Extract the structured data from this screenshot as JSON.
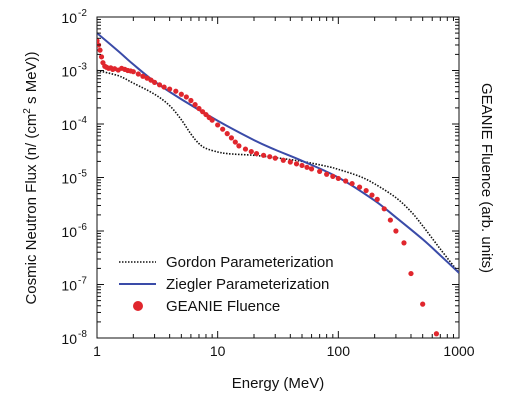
{
  "chart_data": {
    "type": "scatter",
    "title": "",
    "xlabel": "Energy (MeV)",
    "ylabel_left": "Cosmic Neutron Flux (n/ (cm² s MeV))",
    "ylabel_right": "GEANIE Fluence (arb. units)",
    "x_scale": "log",
    "y_scale": "log",
    "xlim": [
      1,
      1000
    ],
    "ylim": [
      1e-08,
      0.01
    ],
    "x_ticks": [
      {
        "value": 1,
        "label": "1"
      },
      {
        "value": 10,
        "label": "10"
      },
      {
        "value": 100,
        "label": "100"
      },
      {
        "value": 1000,
        "label": "1000"
      }
    ],
    "y_ticks": [
      {
        "value": 1e-08,
        "base": "10",
        "exp": "-8"
      },
      {
        "value": 1e-07,
        "base": "10",
        "exp": "-7"
      },
      {
        "value": 1e-06,
        "base": "10",
        "exp": "-6"
      },
      {
        "value": 1e-05,
        "base": "10",
        "exp": "-5"
      },
      {
        "value": 0.0001,
        "base": "10",
        "exp": "-4"
      },
      {
        "value": 0.001,
        "base": "10",
        "exp": "-3"
      },
      {
        "value": 0.01,
        "base": "10",
        "exp": "-2"
      }
    ],
    "grid": false,
    "legend_position": "bottom-left",
    "series": [
      {
        "name": "Gordon Parameterization",
        "kind": "line",
        "style": "dotted",
        "color": "#111111",
        "x": [
          1,
          1.5,
          2,
          3,
          4,
          5,
          6,
          7,
          8,
          10,
          12,
          15,
          20,
          30,
          50,
          80,
          100,
          150,
          200,
          300,
          400,
          500,
          700,
          1000
        ],
        "y": [
          0.001,
          0.0008,
          0.00058,
          0.00036,
          0.00022,
          0.00012,
          6.5e-05,
          4.3e-05,
          3.5e-05,
          3e-05,
          2.8e-05,
          2.7e-05,
          2.6e-05,
          2.35e-05,
          2e-05,
          1.62e-05,
          1.42e-05,
          1.05e-05,
          7.6e-06,
          4.2e-06,
          2.3e-06,
          1.25e-06,
          4.6e-07,
          1.65e-07
        ]
      },
      {
        "name": "Ziegler Parameterization",
        "kind": "line",
        "style": "solid",
        "color": "#3a4ba8",
        "x": [
          1,
          1.5,
          2,
          3,
          5,
          10,
          20,
          30,
          50,
          100,
          200,
          300,
          500,
          700,
          1000
        ],
        "y": [
          0.005,
          0.0023,
          0.0013,
          0.00062,
          0.00029,
          0.000115,
          5e-05,
          3.3e-05,
          2.05e-05,
          1e-05,
          3.7e-06,
          1.8e-06,
          7e-07,
          3.5e-07,
          1.65e-07
        ]
      },
      {
        "name": "GEANIE Fluence",
        "kind": "scatter",
        "color": "#e0262d",
        "x": [
          1.0,
          1.03,
          1.06,
          1.09,
          1.12,
          1.16,
          1.2,
          1.25,
          1.3,
          1.35,
          1.4,
          1.5,
          1.6,
          1.7,
          1.8,
          1.9,
          2.0,
          2.2,
          2.4,
          2.6,
          2.8,
          3.0,
          3.3,
          3.6,
          4.0,
          4.5,
          5.0,
          5.5,
          6.0,
          6.5,
          7.0,
          7.5,
          8.0,
          8.5,
          9.0,
          10,
          11,
          12,
          13,
          14,
          15,
          17,
          19,
          21,
          24,
          27,
          30,
          35,
          40,
          45,
          50,
          55,
          60,
          70,
          80,
          90,
          100,
          115,
          130,
          150,
          170,
          190,
          210,
          240,
          270,
          300,
          350,
          400,
          500,
          650
        ],
        "y": [
          0.0036,
          0.003,
          0.0024,
          0.0018,
          0.0014,
          0.0012,
          0.00115,
          0.0011,
          0.00112,
          0.00105,
          0.00108,
          0.00102,
          0.0011,
          0.00105,
          0.001,
          0.00098,
          0.00095,
          0.00086,
          0.00078,
          0.00072,
          0.00066,
          0.0006,
          0.00054,
          0.00049,
          0.00045,
          0.00041,
          0.00036,
          0.00032,
          0.000275,
          0.00023,
          0.000195,
          0.00017,
          0.00015,
          0.000132,
          0.000118,
          9.6e-05,
          8e-05,
          6.6e-05,
          5.5e-05,
          4.6e-05,
          3.9e-05,
          3.4e-05,
          3.05e-05,
          2.8e-05,
          2.6e-05,
          2.45e-05,
          2.3e-05,
          2.1e-05,
          1.95e-05,
          1.8e-05,
          1.68e-05,
          1.55e-05,
          1.45e-05,
          1.3e-05,
          1.15e-05,
          1.05e-05,
          9.6e-06,
          8.6e-06,
          7.7e-06,
          6.6e-06,
          5.7e-06,
          4.7e-06,
          3.9e-06,
          2.6e-06,
          1.6e-06,
          1e-06,
          6e-07,
          1.6e-07,
          4.3e-08,
          1.2e-08
        ]
      }
    ]
  }
}
